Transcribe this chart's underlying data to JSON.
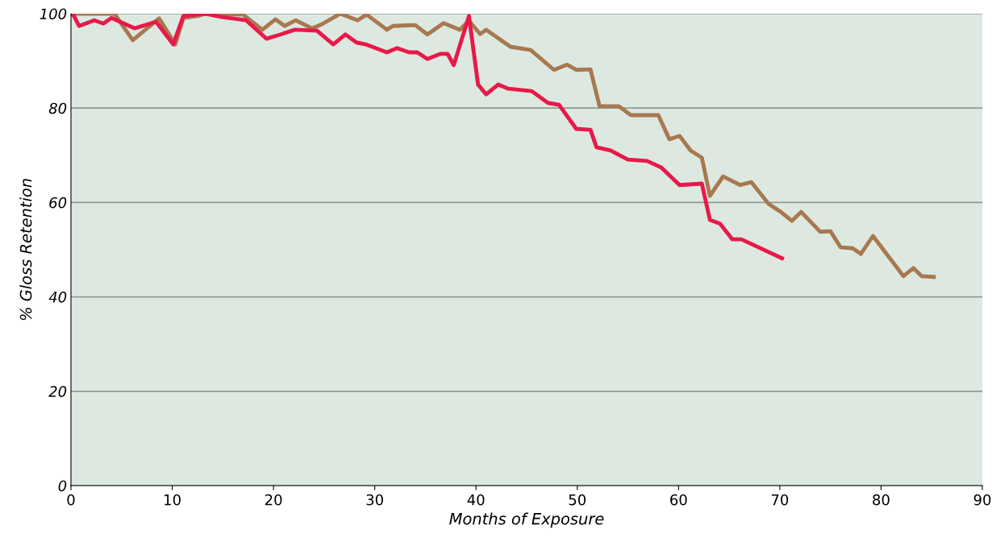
{
  "chart_data": {
    "type": "line",
    "xlabel": "Months of Exposure",
    "ylabel": "% Gloss Retention",
    "xlim": [
      0,
      90
    ],
    "xticks": [
      0,
      10,
      20,
      30,
      40,
      50,
      60,
      70,
      80,
      90
    ],
    "ylim": [
      0,
      100
    ],
    "yticks": [
      0,
      20,
      40,
      60,
      80,
      100
    ],
    "grid": "y",
    "line_style": "solid",
    "series": [
      {
        "color": "#a87850",
        "x": [
          0,
          2.9,
          4.3,
          6.1,
          8.7,
          10.3,
          11.1,
          12.5,
          13.3,
          17,
          18.9,
          20.2,
          21.1,
          22.2,
          23.8,
          24.8,
          26.6,
          28.3,
          29.2,
          31.2,
          31.8,
          34,
          35.2,
          36.8,
          38.4,
          39.3,
          40.4,
          41,
          43.4,
          45.4,
          47.7,
          49,
          49.9,
          51.3,
          52.2,
          54.1,
          55.3,
          58,
          59.1,
          60.1,
          61.2,
          62.3,
          63.1,
          64.4,
          66.1,
          67.2,
          68.9,
          70.1,
          71.2,
          72.1,
          74,
          75,
          76,
          77.2,
          78,
          79.2,
          82.2,
          83.2,
          84,
          85.4
        ],
        "values": [
          100,
          100,
          100,
          94.4,
          99,
          93.5,
          99.1,
          99.5,
          100,
          99.8,
          96.6,
          98.8,
          97.4,
          98.6,
          96.9,
          97.8,
          100,
          98.6,
          99.8,
          96.6,
          97.4,
          97.6,
          95.6,
          98,
          96.6,
          98.5,
          95.7,
          96.6,
          93,
          92.3,
          88.1,
          89.2,
          88.1,
          88.2,
          80.4,
          80.4,
          78.5,
          78.5,
          73.4,
          74.1,
          71,
          69.5,
          61.4,
          65.5,
          63.7,
          64.3,
          59.7,
          58,
          56.1,
          58,
          53.8,
          53.9,
          50.5,
          50.3,
          49.1,
          52.9,
          44.4,
          46.1,
          44.4,
          44.2
        ]
      },
      {
        "color": "#e8194a",
        "x": [
          0,
          0.3,
          0.8,
          2.3,
          3.2,
          4,
          6.3,
          8.4,
          10.1,
          11.1,
          12.3,
          13.3,
          14.9,
          17.3,
          19.3,
          20.7,
          22.1,
          24.3,
          25.9,
          27.1,
          28.2,
          29.1,
          31.2,
          32.2,
          33.4,
          34.2,
          35.2,
          36.5,
          37.2,
          37.8,
          39.3,
          40.2,
          41,
          42.2,
          43.2,
          45.5,
          47.1,
          48.2,
          49.9,
          51.3,
          51.9,
          53.3,
          55,
          56.9,
          58.3,
          60.1,
          62.3,
          63.1,
          64.1,
          65.3,
          66.2,
          70.4
        ],
        "values": [
          100,
          99.5,
          97.4,
          98.6,
          97.9,
          99.1,
          96.9,
          98.3,
          93.5,
          99.5,
          99.8,
          100,
          99.3,
          98.6,
          94.7,
          95.6,
          96.6,
          96.4,
          93.5,
          95.6,
          93.9,
          93.5,
          91.8,
          92.7,
          91.8,
          91.8,
          90.4,
          91.5,
          91.5,
          89.1,
          99.5,
          85,
          82.9,
          85,
          84.1,
          83.6,
          81.1,
          80.7,
          75.6,
          75.4,
          71.7,
          71,
          69.1,
          68.8,
          67.4,
          63.7,
          64,
          56.3,
          55.5,
          52.2,
          52.2,
          48
        ]
      }
    ]
  }
}
